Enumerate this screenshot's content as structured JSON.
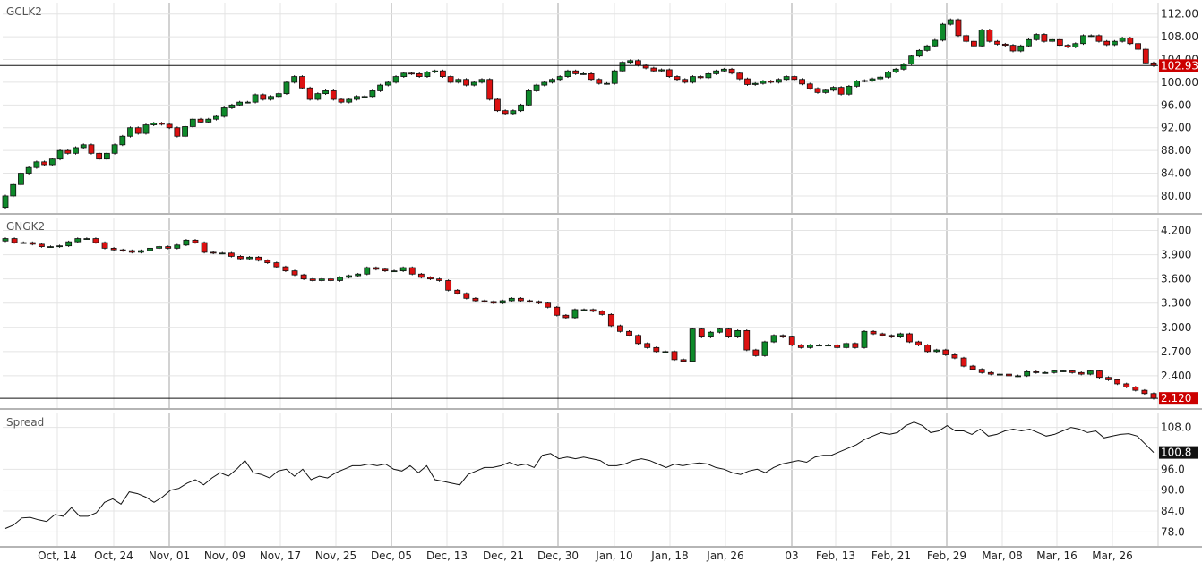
{
  "chart_data": [
    {
      "type": "candlestick",
      "title": "GCLK2",
      "ylim": [
        77,
        114
      ],
      "y_ticks": [
        "80.00",
        "84.00",
        "88.00",
        "92.00",
        "96.00",
        "100.00",
        "104.00",
        "108.00",
        "112.00"
      ],
      "last_value_label": "102.93",
      "last_value": 102.93,
      "closes": [
        80,
        82,
        84,
        85,
        86,
        85.5,
        86.5,
        88,
        87.5,
        88.5,
        89,
        87.5,
        86.5,
        87.5,
        89,
        90.5,
        92,
        91,
        92.5,
        92.8,
        92.6,
        92,
        90.5,
        92.2,
        93.5,
        93,
        93.5,
        94,
        95.5,
        96,
        96.5,
        96.5,
        97.8,
        97,
        97.5,
        98,
        100,
        101,
        99,
        97,
        98,
        98.5,
        97,
        96.5,
        97,
        97.5,
        97.5,
        98.5,
        99.5,
        100,
        101,
        101.6,
        101.5,
        101,
        101.8,
        102,
        101,
        100,
        100.5,
        99.5,
        100,
        100.5,
        97,
        95,
        94.5,
        95,
        96,
        98.5,
        99.5,
        100,
        100.5,
        101,
        102,
        101.5,
        101.5,
        100.5,
        99.8,
        99.8,
        102,
        103.5,
        103.8,
        103,
        102.5,
        102,
        102.2,
        101,
        100.5,
        100,
        101,
        100.8,
        101.5,
        102,
        102.3,
        101.6,
        100.6,
        99.6,
        99.8,
        100.2,
        100,
        100.5,
        101,
        100.5,
        99.7,
        98.9,
        98.2,
        98.6,
        99.1,
        97.9,
        99.3,
        100.2,
        100.3,
        100.6,
        100.9,
        101.8,
        102.3,
        103.2,
        104.6,
        105.6,
        106.4,
        107.4,
        110.2,
        111.0,
        108.2,
        107.2,
        106.4,
        109.2,
        107.2,
        106.7,
        106.5,
        105.5,
        106.4,
        107.5,
        108.4,
        107.2,
        107.5,
        106.5,
        106.2,
        106.8,
        108.2,
        108.2,
        107.2,
        106.6,
        107.2,
        107.8,
        106.8,
        105.8,
        103.4,
        102.93
      ],
      "x_tick_labels": [
        "Oct, 14",
        "Oct, 24",
        "Nov, 01",
        "Nov, 09",
        "Nov, 17",
        "Nov, 25",
        "Dec, 05",
        "Dec, 13",
        "Dec, 21",
        "Dec, 30",
        "Jan, 10",
        "Jan, 18",
        "Jan, 26",
        "03",
        "Feb, 13",
        "Feb, 21",
        "Feb, 29",
        "Mar, 08",
        "Mar, 16",
        "Mar, 26"
      ],
      "colors": {
        "up": "#0e8a2a",
        "down": "#dd1111",
        "last_label_bg": "#cc0000",
        "last_label_text": "#ffffff"
      }
    },
    {
      "type": "candlestick",
      "title": "GNGK2",
      "ylim": [
        2.0,
        4.35
      ],
      "y_ticks": [
        "2.400",
        "2.700",
        "3.000",
        "3.300",
        "3.600",
        "3.900",
        "4.200"
      ],
      "last_value_label": "2.120",
      "last_value": 2.12,
      "closes": [
        4.1,
        4.05,
        4.05,
        4.03,
        4.0,
        4.0,
        4.01,
        4.06,
        4.1,
        4.1,
        4.05,
        3.98,
        3.96,
        3.95,
        3.93,
        3.95,
        3.98,
        4.0,
        3.98,
        4.02,
        4.08,
        4.05,
        3.93,
        3.92,
        3.92,
        3.88,
        3.85,
        3.87,
        3.83,
        3.8,
        3.75,
        3.7,
        3.65,
        3.6,
        3.58,
        3.6,
        3.58,
        3.62,
        3.64,
        3.66,
        3.74,
        3.72,
        3.7,
        3.7,
        3.74,
        3.66,
        3.62,
        3.6,
        3.58,
        3.46,
        3.42,
        3.36,
        3.33,
        3.32,
        3.3,
        3.33,
        3.36,
        3.33,
        3.32,
        3.3,
        3.25,
        3.15,
        3.12,
        3.22,
        3.22,
        3.2,
        3.16,
        3.02,
        2.95,
        2.9,
        2.8,
        2.75,
        2.7,
        2.7,
        2.6,
        2.58,
        2.98,
        2.88,
        2.94,
        2.98,
        2.88,
        2.96,
        2.72,
        2.65,
        2.82,
        2.9,
        2.88,
        2.78,
        2.75,
        2.78,
        2.78,
        2.78,
        2.75,
        2.8,
        2.75,
        2.95,
        2.92,
        2.9,
        2.88,
        2.92,
        2.82,
        2.78,
        2.7,
        2.72,
        2.66,
        2.62,
        2.52,
        2.48,
        2.44,
        2.42,
        2.42,
        2.4,
        2.4,
        2.45,
        2.44,
        2.44,
        2.46,
        2.46,
        2.44,
        2.42,
        2.46,
        2.38,
        2.35,
        2.3,
        2.26,
        2.22,
        2.18,
        2.12
      ],
      "colors": {
        "up": "#0e8a2a",
        "down": "#dd1111",
        "last_label_bg": "#cc0000",
        "last_label_text": "#ffffff"
      }
    },
    {
      "type": "line",
      "title": "Spread",
      "ylim": [
        74,
        112
      ],
      "y_ticks": [
        "78.0",
        "84.0",
        "90.0",
        "96.0",
        "108.0"
      ],
      "last_value_label": "100.8",
      "last_value": 100.8,
      "values": [
        79,
        80,
        82,
        82.2,
        81.5,
        81,
        83,
        82.5,
        85,
        82.5,
        82.5,
        83.5,
        86.5,
        87.5,
        86,
        89.5,
        89,
        88,
        86.5,
        88,
        90,
        90.5,
        92,
        93,
        91.5,
        93.5,
        95,
        94,
        96,
        98.5,
        95,
        94.5,
        93.5,
        95.5,
        96,
        94,
        96,
        93,
        94,
        93.5,
        95,
        96,
        97,
        97,
        97.5,
        97,
        97.5,
        96,
        95.5,
        97,
        95,
        97,
        93,
        92.5,
        92,
        91.5,
        94.5,
        95.5,
        96.5,
        96.5,
        97,
        98,
        97,
        97.5,
        96.5,
        100,
        100.5,
        99,
        99.5,
        99,
        99.5,
        99,
        98.5,
        97,
        97,
        97.5,
        98.5,
        99,
        98.5,
        97.5,
        96.5,
        97.5,
        97,
        97.5,
        97.8,
        97.5,
        96.5,
        96,
        95,
        94.5,
        95.5,
        96,
        95,
        96.5,
        97.5,
        98,
        98.5,
        98,
        99.5,
        100,
        100,
        101,
        102,
        103,
        104.5,
        105.5,
        106.5,
        106,
        106.5,
        108.5,
        109.5,
        108.5,
        106.5,
        107,
        108.5,
        107,
        107,
        106,
        107.5,
        105.5,
        106,
        107,
        107.5,
        107,
        107.5,
        106.5,
        105.5,
        106,
        107,
        108,
        107.5,
        106.5,
        107,
        105,
        105.5,
        106,
        106.2,
        105.5,
        103.2,
        100.8
      ],
      "colors": {
        "line": "#111111",
        "last_label_bg": "#111111",
        "last_label_text": "#ffffff"
      }
    }
  ]
}
